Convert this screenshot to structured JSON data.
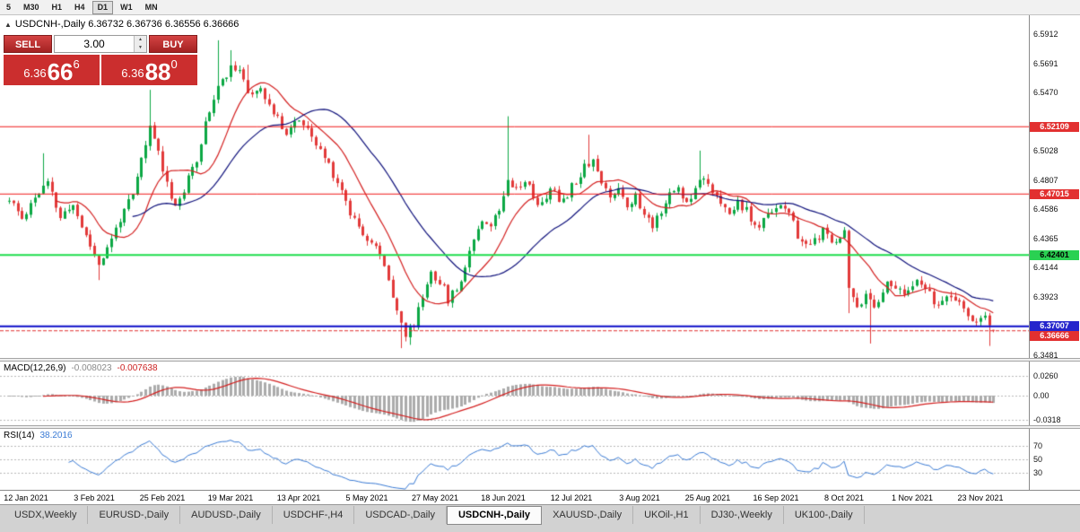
{
  "toolbar": {
    "timeframes": [
      {
        "label": "5",
        "active": false
      },
      {
        "label": "M30",
        "active": false
      },
      {
        "label": "H1",
        "active": false
      },
      {
        "label": "H4",
        "active": false
      },
      {
        "label": "D1",
        "active": true
      },
      {
        "label": "W1",
        "active": false
      },
      {
        "label": "MN",
        "active": false
      }
    ]
  },
  "chart": {
    "symbol": "USDCNH-",
    "timeframe": "Daily",
    "title_line": "USDCNH-,Daily 6.36732 6.36736 6.36556 6.36666",
    "open": "6.36732",
    "high": "6.36736",
    "low": "6.36556",
    "close": "6.36666"
  },
  "one_click": {
    "sell_label": "SELL",
    "buy_label": "BUY",
    "volume": "3.00",
    "sell_price": {
      "small": "6.36",
      "big": "66",
      "sup": "6"
    },
    "buy_price": {
      "small": "6.36",
      "big": "88",
      "sup": "0"
    }
  },
  "price_axis": {
    "tick_top_value": 6.5912,
    "tick_step": 0.0221,
    "tick_count": 12,
    "decimals": 4
  },
  "levels": [
    {
      "value": 6.52109,
      "label": "6.52109",
      "line_color": "#f01818",
      "badge_bg": "#e23030",
      "text_color": "#ffffff",
      "line_width": 1
    },
    {
      "value": 6.47015,
      "label": "6.47015",
      "line_color": "#f01818",
      "badge_bg": "#e23030",
      "text_color": "#ffffff",
      "line_width": 1
    },
    {
      "value": 6.42401,
      "label": "6.42401",
      "line_color": "#1fdd4d",
      "badge_bg": "#2ad152",
      "text_color": "#000000",
      "line_width": 2
    },
    {
      "value": 6.37007,
      "label": "6.37007",
      "line_color": "#0d0dc8",
      "badge_bg": "#2525cc",
      "text_color": "#ffffff",
      "line_width": 2
    }
  ],
  "current_price": {
    "value": 6.36666,
    "label": "6.36666",
    "line_color": "#e23030",
    "badge_bg": "#e23030",
    "text_color": "#ffffff"
  },
  "chart_data": {
    "type": "candlestick",
    "symbol": "USDCNH-",
    "timeframe": "Daily",
    "seed": 11,
    "candle_count": 232,
    "close_waypoints": [
      [
        0,
        6.465
      ],
      [
        3,
        6.452
      ],
      [
        6,
        6.468
      ],
      [
        9,
        6.478
      ],
      [
        12,
        6.452
      ],
      [
        15,
        6.462
      ],
      [
        18,
        6.438
      ],
      [
        21,
        6.418
      ],
      [
        23,
        6.428
      ],
      [
        26,
        6.452
      ],
      [
        29,
        6.468
      ],
      [
        31,
        6.496
      ],
      [
        33,
        6.52
      ],
      [
        35,
        6.503
      ],
      [
        37,
        6.478
      ],
      [
        39,
        6.462
      ],
      [
        41,
        6.472
      ],
      [
        44,
        6.498
      ],
      [
        47,
        6.535
      ],
      [
        50,
        6.558
      ],
      [
        53,
        6.567
      ],
      [
        56,
        6.547
      ],
      [
        59,
        6.552
      ],
      [
        62,
        6.53
      ],
      [
        65,
        6.518
      ],
      [
        68,
        6.527
      ],
      [
        71,
        6.512
      ],
      [
        74,
        6.498
      ],
      [
        77,
        6.48
      ],
      [
        80,
        6.457
      ],
      [
        83,
        6.442
      ],
      [
        86,
        6.43
      ],
      [
        89,
        6.407
      ],
      [
        91,
        6.383
      ],
      [
        93,
        6.363
      ],
      [
        95,
        6.372
      ],
      [
        97,
        6.393
      ],
      [
        99,
        6.412
      ],
      [
        101,
        6.404
      ],
      [
        103,
        6.391
      ],
      [
        105,
        6.398
      ],
      [
        107,
        6.416
      ],
      [
        109,
        6.438
      ],
      [
        111,
        6.452
      ],
      [
        113,
        6.447
      ],
      [
        115,
        6.458
      ],
      [
        117,
        6.484
      ],
      [
        119,
        6.474
      ],
      [
        121,
        6.482
      ],
      [
        123,
        6.468
      ],
      [
        125,
        6.461
      ],
      [
        127,
        6.476
      ],
      [
        129,
        6.465
      ],
      [
        131,
        6.471
      ],
      [
        133,
        6.481
      ],
      [
        135,
        6.492
      ],
      [
        137,
        6.497
      ],
      [
        139,
        6.478
      ],
      [
        141,
        6.468
      ],
      [
        143,
        6.476
      ],
      [
        145,
        6.462
      ],
      [
        147,
        6.468
      ],
      [
        149,
        6.454
      ],
      [
        151,
        6.447
      ],
      [
        153,
        6.459
      ],
      [
        155,
        6.469
      ],
      [
        157,
        6.475
      ],
      [
        159,
        6.463
      ],
      [
        161,
        6.477
      ],
      [
        163,
        6.485
      ],
      [
        165,
        6.473
      ],
      [
        167,
        6.461
      ],
      [
        169,
        6.454
      ],
      [
        171,
        6.465
      ],
      [
        173,
        6.457
      ],
      [
        175,
        6.444
      ],
      [
        177,
        6.449
      ],
      [
        179,
        6.459
      ],
      [
        181,
        6.463
      ],
      [
        183,
        6.454
      ],
      [
        185,
        6.439
      ],
      [
        187,
        6.429
      ],
      [
        189,
        6.435
      ],
      [
        191,
        6.441
      ],
      [
        193,
        6.433
      ],
      [
        195,
        6.439
      ],
      [
        196,
        6.442
      ],
      [
        197,
        6.398
      ],
      [
        199,
        6.387
      ],
      [
        201,
        6.392
      ],
      [
        203,
        6.385
      ],
      [
        205,
        6.399
      ],
      [
        207,
        6.403
      ],
      [
        209,
        6.395
      ],
      [
        211,
        6.397
      ],
      [
        213,
        6.403
      ],
      [
        215,
        6.397
      ],
      [
        217,
        6.39
      ],
      [
        219,
        6.386
      ],
      [
        221,
        6.393
      ],
      [
        223,
        6.385
      ],
      [
        225,
        6.379
      ],
      [
        227,
        6.373
      ],
      [
        229,
        6.375
      ],
      [
        231,
        6.3667
      ]
    ],
    "spikes": [
      [
        8,
        "H",
        6.501
      ],
      [
        21,
        "L",
        6.405
      ],
      [
        33,
        "H",
        6.549
      ],
      [
        49,
        "H",
        6.5865
      ],
      [
        52,
        "H",
        6.579
      ],
      [
        56,
        "H",
        6.568
      ],
      [
        92,
        "L",
        6.3535
      ],
      [
        94,
        "L",
        6.356
      ],
      [
        117,
        "H",
        6.529
      ],
      [
        136,
        "H",
        6.515
      ],
      [
        162,
        "H",
        6.503
      ],
      [
        197,
        "L",
        6.38
      ],
      [
        202,
        "L",
        6.357
      ],
      [
        230,
        "L",
        6.3552
      ]
    ],
    "last_candle": {
      "open": 6.36732,
      "high": 6.36736,
      "low": 6.36556,
      "close": 6.36666
    },
    "moving_averages": [
      {
        "period": 12,
        "color": "#d42020"
      },
      {
        "period": 30,
        "color": "#10127c"
      }
    ],
    "colors": {
      "bull": "#0ba844",
      "bear": "#e23a3a",
      "histogram": "#ababab",
      "macd_signal": "#d42020",
      "rsi_line": "#3a7bd5"
    }
  },
  "macd": {
    "name": "MACD(12,26,9)",
    "value_main": "-0.008023",
    "value_signal": "-0.007638",
    "axis_labels": [
      {
        "value": 0.026,
        "label": "0.0260"
      },
      {
        "value": 0,
        "label": "0.00"
      },
      {
        "value": -0.0318,
        "label": "-0.0318"
      }
    ]
  },
  "rsi": {
    "name": "RSI(14)",
    "value": "38.2016",
    "levels": [
      {
        "value": 70,
        "label": "70"
      },
      {
        "value": 50,
        "label": "50"
      },
      {
        "value": 30,
        "label": "30"
      }
    ]
  },
  "date_axis": {
    "first_candle_index": 4,
    "index_step": 16,
    "labels": [
      "12 Jan 2021",
      "3 Feb 2021",
      "25 Feb 2021",
      "19 Mar 2021",
      "13 Apr 2021",
      "5 May 2021",
      "27 May 2021",
      "18 Jun 2021",
      "12 Jul 2021",
      "3 Aug 2021",
      "25 Aug 2021",
      "16 Sep 2021",
      "8 Oct 2021",
      "1 Nov 2021",
      "23 Nov 2021"
    ]
  },
  "tabs": [
    {
      "label": "USDX,Weekly",
      "active": false
    },
    {
      "label": "EURUSD-,Daily",
      "active": false
    },
    {
      "label": "AUDUSD-,Daily",
      "active": false
    },
    {
      "label": "USDCHF-,H4",
      "active": false
    },
    {
      "label": "USDCAD-,Daily",
      "active": false
    },
    {
      "label": "USDCNH-,Daily",
      "active": true
    },
    {
      "label": "XAUUSD-,Daily",
      "active": false
    },
    {
      "label": "UKOil-,H1",
      "active": false
    },
    {
      "label": "DJ30-,Weekly",
      "active": false
    },
    {
      "label": "UK100-,Daily",
      "active": false
    }
  ]
}
